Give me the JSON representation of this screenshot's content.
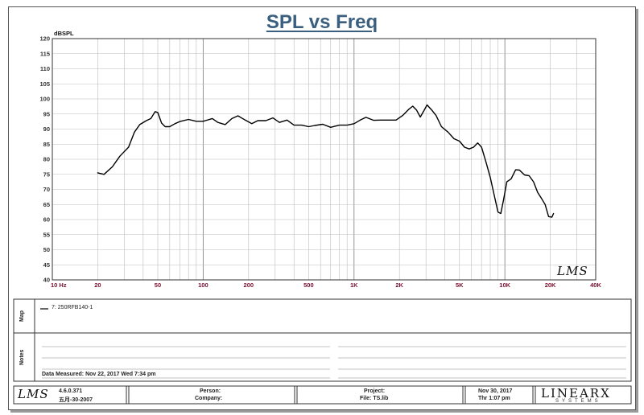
{
  "chart_data": {
    "type": "line",
    "title": "SPL vs Freq",
    "ylabel": "dBSPL",
    "xlabel": "",
    "x_scale": "log",
    "xlim": [
      10,
      40000
    ],
    "ylim": [
      40,
      120
    ],
    "grid": true,
    "y_ticks": [
      40,
      45,
      50,
      55,
      60,
      65,
      70,
      75,
      80,
      85,
      90,
      95,
      100,
      105,
      110,
      115,
      120
    ],
    "x_tick_labels": [
      {
        "value": 10,
        "label": "10 Hz"
      },
      {
        "value": 20,
        "label": "20"
      },
      {
        "value": 50,
        "label": "50"
      },
      {
        "value": 100,
        "label": "100"
      },
      {
        "value": 200,
        "label": "200"
      },
      {
        "value": 500,
        "label": "500"
      },
      {
        "value": 1000,
        "label": "1K"
      },
      {
        "value": 2000,
        "label": "2K"
      },
      {
        "value": 5000,
        "label": "5K"
      },
      {
        "value": 10000,
        "label": "10K"
      },
      {
        "value": 20000,
        "label": "20K"
      },
      {
        "value": 40000,
        "label": "40K"
      }
    ],
    "series": [
      {
        "name": "7: 250RFB140-1",
        "color": "#000000",
        "points": [
          [
            20,
            75.5
          ],
          [
            22,
            75
          ],
          [
            25,
            77.5
          ],
          [
            28,
            81
          ],
          [
            32,
            84
          ],
          [
            35,
            89
          ],
          [
            38,
            91.5
          ],
          [
            42,
            92.8
          ],
          [
            45,
            93.5
          ],
          [
            48,
            95.8
          ],
          [
            50,
            95.5
          ],
          [
            53,
            92
          ],
          [
            56,
            90.8
          ],
          [
            60,
            90.8
          ],
          [
            65,
            91.8
          ],
          [
            70,
            92.5
          ],
          [
            80,
            93.2
          ],
          [
            90,
            92.6
          ],
          [
            100,
            92.6
          ],
          [
            115,
            93.5
          ],
          [
            125,
            92.2
          ],
          [
            140,
            91.5
          ],
          [
            155,
            93.5
          ],
          [
            170,
            94.4
          ],
          [
            190,
            93
          ],
          [
            210,
            91.8
          ],
          [
            230,
            92.8
          ],
          [
            260,
            92.8
          ],
          [
            290,
            93.7
          ],
          [
            320,
            92.2
          ],
          [
            360,
            93
          ],
          [
            400,
            91.3
          ],
          [
            450,
            91.3
          ],
          [
            500,
            90.8
          ],
          [
            550,
            91.2
          ],
          [
            620,
            91.6
          ],
          [
            700,
            90.6
          ],
          [
            800,
            91.3
          ],
          [
            900,
            91.3
          ],
          [
            1000,
            91.8
          ],
          [
            1100,
            93
          ],
          [
            1200,
            93.9
          ],
          [
            1350,
            92.9
          ],
          [
            1500,
            93
          ],
          [
            1700,
            93
          ],
          [
            1900,
            93
          ],
          [
            2100,
            94.5
          ],
          [
            2300,
            96.5
          ],
          [
            2450,
            97.6
          ],
          [
            2600,
            96.3
          ],
          [
            2750,
            94
          ],
          [
            2900,
            96
          ],
          [
            3050,
            98
          ],
          [
            3250,
            96.5
          ],
          [
            3500,
            94.5
          ],
          [
            3800,
            90.8
          ],
          [
            4200,
            89
          ],
          [
            4600,
            86.8
          ],
          [
            5000,
            86
          ],
          [
            5400,
            84
          ],
          [
            5800,
            83.4
          ],
          [
            6200,
            84
          ],
          [
            6600,
            85.4
          ],
          [
            7000,
            84
          ],
          [
            7500,
            79
          ],
          [
            8000,
            74
          ],
          [
            8500,
            68
          ],
          [
            9000,
            62.5
          ],
          [
            9400,
            62
          ],
          [
            9800,
            66.5
          ],
          [
            10300,
            72.5
          ],
          [
            11000,
            73.5
          ],
          [
            11800,
            76.5
          ],
          [
            12500,
            76.4
          ],
          [
            13500,
            74.8
          ],
          [
            14500,
            74.5
          ],
          [
            15500,
            72.5
          ],
          [
            16500,
            69
          ],
          [
            17500,
            67
          ],
          [
            18500,
            65
          ],
          [
            19500,
            61
          ],
          [
            20500,
            60.8
          ],
          [
            21000,
            62
          ]
        ]
      }
    ]
  },
  "map_panel": {
    "label": "Map",
    "legend_entry": "7: 250RFB140-1"
  },
  "notes_panel": {
    "label": "Notes",
    "measured": "Data Measured: Nov 22, 2017  Wed  7:34 pm"
  },
  "plot_watermark": "LMS",
  "footer": {
    "logo": "LMS",
    "version": "4.6.0.371",
    "build_date": "五月-30-2007",
    "person_label": "Person:",
    "company_label": "Company:",
    "project_label": "Project:",
    "file_label": "File: TS.lib",
    "date": "Nov 30, 2017",
    "time": "Thr  1:07 pm",
    "brand": "LINEARX",
    "brand_sub": "SYSTEMS"
  }
}
